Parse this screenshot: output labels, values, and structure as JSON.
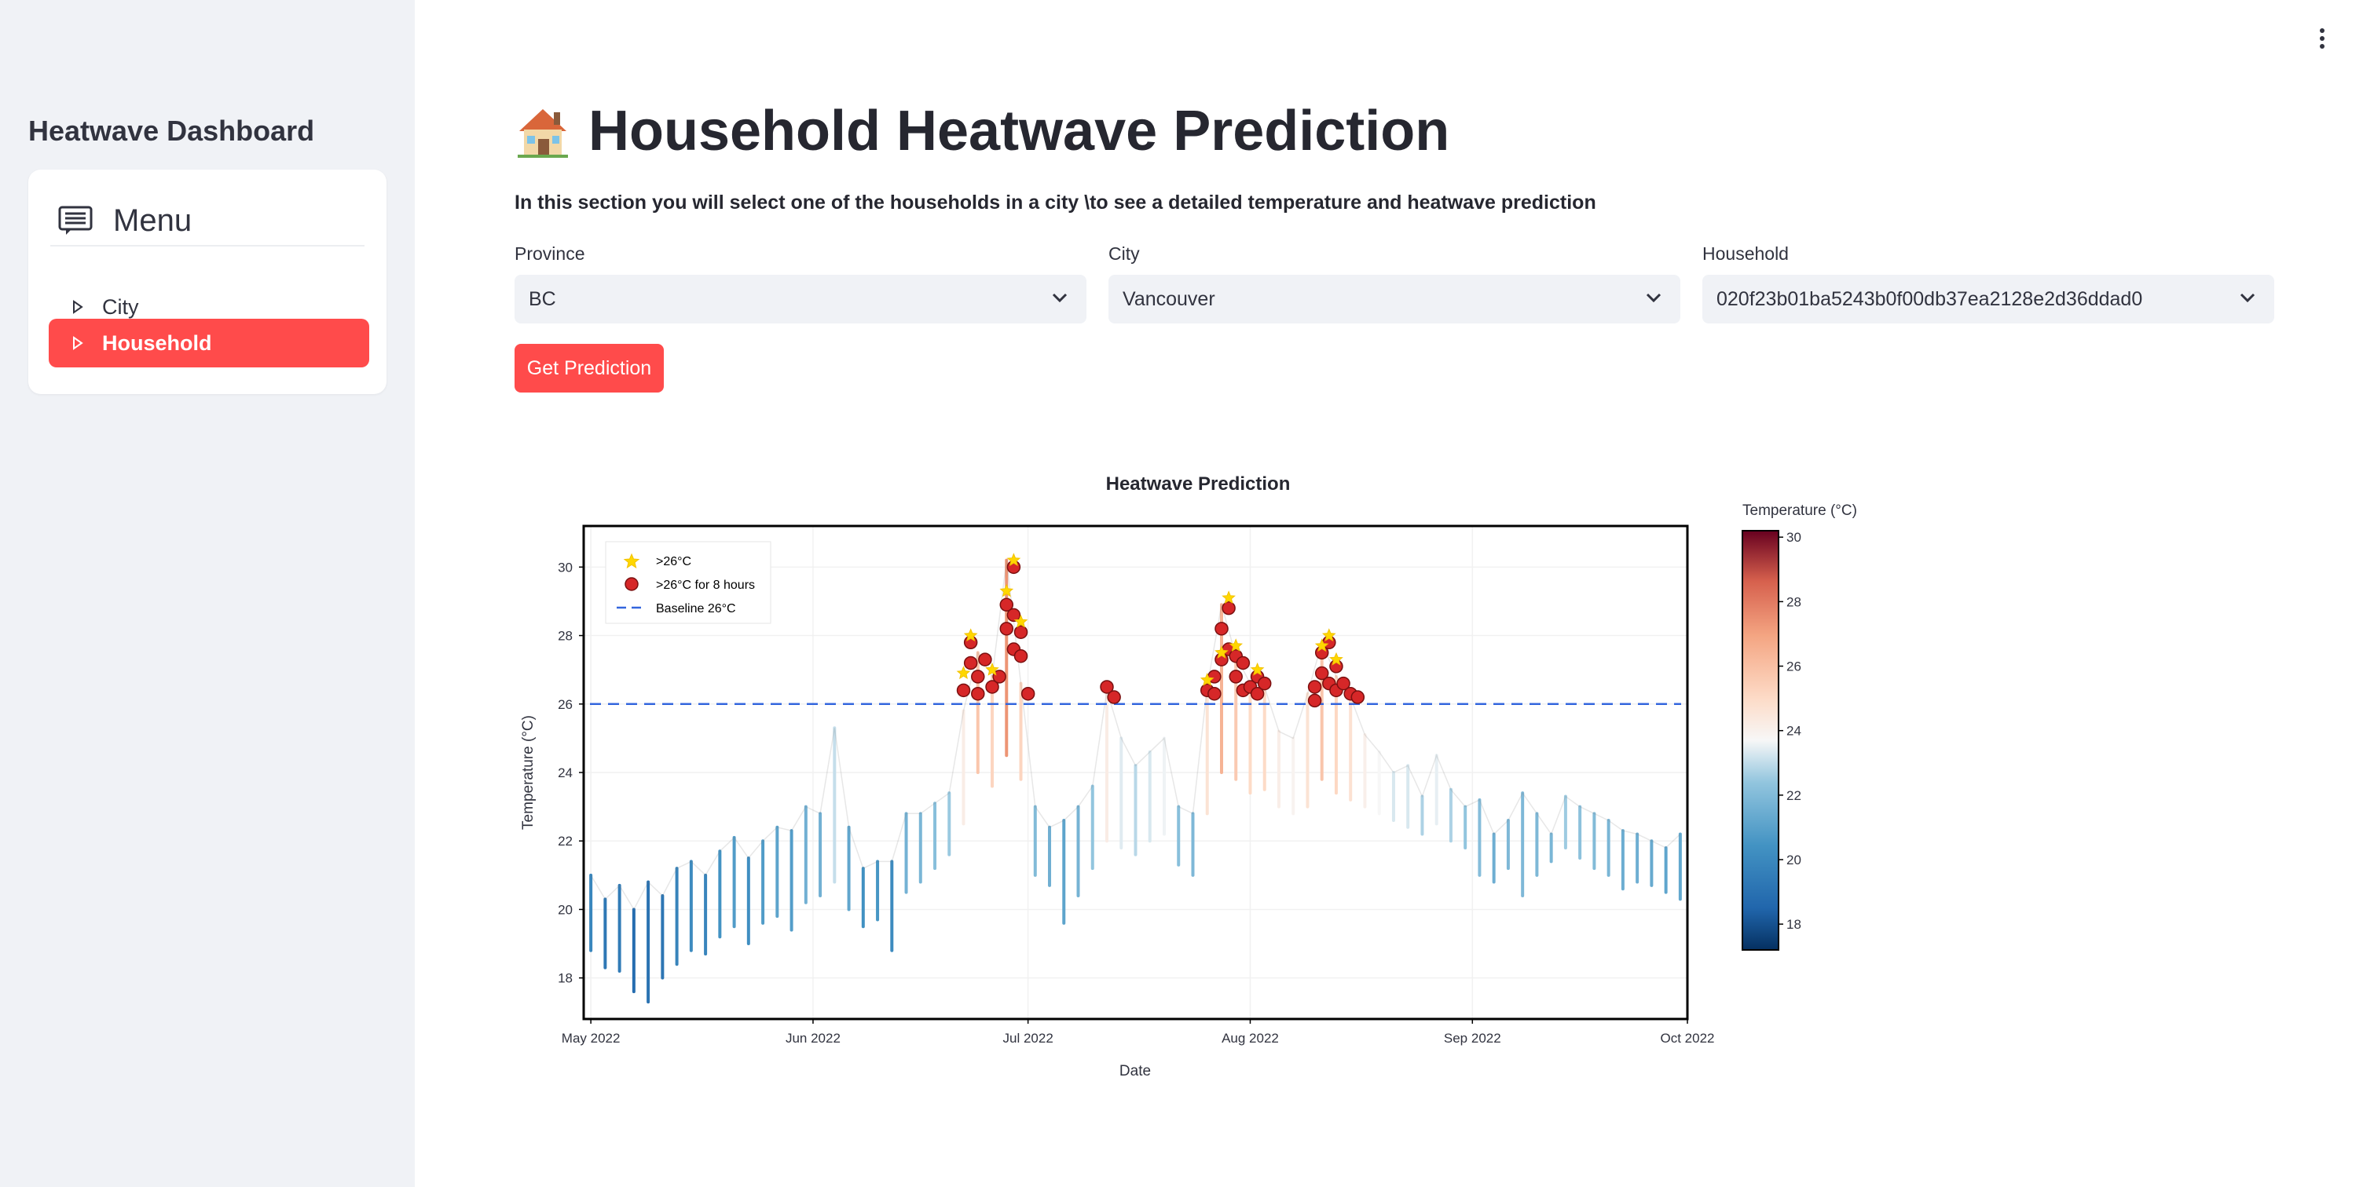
{
  "sidebar": {
    "title": "Heatwave Dashboard",
    "menu_title": "Menu",
    "items": [
      {
        "label": "City",
        "active": false
      },
      {
        "label": "Household",
        "active": true
      }
    ]
  },
  "header": {
    "title": "Household Heatwave Prediction",
    "description": "In this section you will select one of the households in a city \\to see a detailed temperature and heatwave prediction"
  },
  "form": {
    "province": {
      "label": "Province",
      "value": "BC"
    },
    "city": {
      "label": "City",
      "value": "Vancouver"
    },
    "household": {
      "label": "Household",
      "value": "020f23b01ba5243b0f00db37ea2128e2d36ddad0"
    },
    "submit_label": "Get Prediction"
  },
  "colors": {
    "accent": "#ff4b4b",
    "sidebar_bg": "#f0f2f6",
    "baseline": "#3366dd",
    "marker_fill": "#d62728",
    "star_fill": "#ffd700"
  },
  "chart_data": {
    "type": "line",
    "title": "Heatwave Prediction",
    "xlabel": "Date",
    "ylabel": "Temperature (°C)",
    "x_range": [
      "2022-04-30",
      "2022-10-01"
    ],
    "ylim": [
      16.8,
      31.2
    ],
    "x_ticks": [
      {
        "label": "May 2022",
        "date": "2022-05-01"
      },
      {
        "label": "Jun 2022",
        "date": "2022-06-01"
      },
      {
        "label": "Jul 2022",
        "date": "2022-07-01"
      },
      {
        "label": "Aug 2022",
        "date": "2022-08-01"
      },
      {
        "label": "Sep 2022",
        "date": "2022-09-01"
      },
      {
        "label": "Oct 2022",
        "date": "2022-10-01"
      }
    ],
    "y_ticks": [
      18,
      20,
      22,
      24,
      26,
      28,
      30
    ],
    "baseline": 26,
    "grid": true,
    "legend_position": "top-left",
    "legend": [
      {
        "label": ">26°C",
        "marker": "star"
      },
      {
        "label": ">26°C for 8 hours",
        "marker": "circle"
      },
      {
        "label": "Baseline 26°C",
        "marker": "dashed-line"
      }
    ],
    "colorbar": {
      "title": "Temperature (°C)",
      "range": [
        17.2,
        30.2
      ],
      "ticks": [
        18,
        20,
        22,
        24,
        26,
        28,
        30
      ],
      "colormap": "RdBu_r"
    },
    "daily_max": [
      {
        "x": "2022-05-01",
        "y": 21.0
      },
      {
        "x": "2022-05-03",
        "y": 20.3
      },
      {
        "x": "2022-05-05",
        "y": 20.7
      },
      {
        "x": "2022-05-07",
        "y": 20.0
      },
      {
        "x": "2022-05-09",
        "y": 20.8
      },
      {
        "x": "2022-05-11",
        "y": 20.4
      },
      {
        "x": "2022-05-13",
        "y": 21.2
      },
      {
        "x": "2022-05-15",
        "y": 21.4
      },
      {
        "x": "2022-05-17",
        "y": 21.0
      },
      {
        "x": "2022-05-19",
        "y": 21.7
      },
      {
        "x": "2022-05-21",
        "y": 22.1
      },
      {
        "x": "2022-05-23",
        "y": 21.5
      },
      {
        "x": "2022-05-25",
        "y": 22.0
      },
      {
        "x": "2022-05-27",
        "y": 22.4
      },
      {
        "x": "2022-05-29",
        "y": 22.3
      },
      {
        "x": "2022-05-31",
        "y": 23.0
      },
      {
        "x": "2022-06-02",
        "y": 22.8
      },
      {
        "x": "2022-06-04",
        "y": 25.3
      },
      {
        "x": "2022-06-06",
        "y": 22.4
      },
      {
        "x": "2022-06-08",
        "y": 21.2
      },
      {
        "x": "2022-06-10",
        "y": 21.4
      },
      {
        "x": "2022-06-12",
        "y": 21.4
      },
      {
        "x": "2022-06-14",
        "y": 22.8
      },
      {
        "x": "2022-06-16",
        "y": 22.8
      },
      {
        "x": "2022-06-18",
        "y": 23.1
      },
      {
        "x": "2022-06-20",
        "y": 23.4
      },
      {
        "x": "2022-06-22",
        "y": 25.8
      },
      {
        "x": "2022-06-24",
        "y": 27.5
      },
      {
        "x": "2022-06-26",
        "y": 26.8
      },
      {
        "x": "2022-06-28",
        "y": 30.2
      },
      {
        "x": "2022-06-30",
        "y": 26.6
      },
      {
        "x": "2022-07-02",
        "y": 23.0
      },
      {
        "x": "2022-07-04",
        "y": 22.4
      },
      {
        "x": "2022-07-06",
        "y": 22.6
      },
      {
        "x": "2022-07-08",
        "y": 23.0
      },
      {
        "x": "2022-07-10",
        "y": 23.6
      },
      {
        "x": "2022-07-12",
        "y": 26.4
      },
      {
        "x": "2022-07-14",
        "y": 25.0
      },
      {
        "x": "2022-07-16",
        "y": 24.2
      },
      {
        "x": "2022-07-18",
        "y": 24.6
      },
      {
        "x": "2022-07-20",
        "y": 25.0
      },
      {
        "x": "2022-07-22",
        "y": 23.0
      },
      {
        "x": "2022-07-24",
        "y": 22.8
      },
      {
        "x": "2022-07-26",
        "y": 26.5
      },
      {
        "x": "2022-07-28",
        "y": 28.9
      },
      {
        "x": "2022-07-30",
        "y": 27.4
      },
      {
        "x": "2022-08-01",
        "y": 26.6
      },
      {
        "x": "2022-08-03",
        "y": 26.5
      },
      {
        "x": "2022-08-05",
        "y": 25.2
      },
      {
        "x": "2022-08-07",
        "y": 25.0
      },
      {
        "x": "2022-08-09",
        "y": 26.3
      },
      {
        "x": "2022-08-11",
        "y": 27.8
      },
      {
        "x": "2022-08-13",
        "y": 26.8
      },
      {
        "x": "2022-08-15",
        "y": 26.2
      },
      {
        "x": "2022-08-17",
        "y": 25.1
      },
      {
        "x": "2022-08-19",
        "y": 24.6
      },
      {
        "x": "2022-08-21",
        "y": 24.0
      },
      {
        "x": "2022-08-23",
        "y": 24.2
      },
      {
        "x": "2022-08-25",
        "y": 23.3
      },
      {
        "x": "2022-08-27",
        "y": 24.5
      },
      {
        "x": "2022-08-29",
        "y": 23.5
      },
      {
        "x": "2022-08-31",
        "y": 23.0
      },
      {
        "x": "2022-09-02",
        "y": 23.2
      },
      {
        "x": "2022-09-04",
        "y": 22.2
      },
      {
        "x": "2022-09-06",
        "y": 22.6
      },
      {
        "x": "2022-09-08",
        "y": 23.4
      },
      {
        "x": "2022-09-10",
        "y": 22.8
      },
      {
        "x": "2022-09-12",
        "y": 22.2
      },
      {
        "x": "2022-09-14",
        "y": 23.3
      },
      {
        "x": "2022-09-16",
        "y": 23.0
      },
      {
        "x": "2022-09-18",
        "y": 22.8
      },
      {
        "x": "2022-09-20",
        "y": 22.6
      },
      {
        "x": "2022-09-22",
        "y": 22.3
      },
      {
        "x": "2022-09-24",
        "y": 22.2
      },
      {
        "x": "2022-09-26",
        "y": 22.0
      },
      {
        "x": "2022-09-28",
        "y": 21.8
      },
      {
        "x": "2022-09-30",
        "y": 22.2
      }
    ],
    "daily_min": [
      {
        "x": "2022-05-01",
        "y": 18.8
      },
      {
        "x": "2022-05-03",
        "y": 18.3
      },
      {
        "x": "2022-05-05",
        "y": 18.2
      },
      {
        "x": "2022-05-07",
        "y": 17.6
      },
      {
        "x": "2022-05-09",
        "y": 17.3
      },
      {
        "x": "2022-05-11",
        "y": 18.0
      },
      {
        "x": "2022-05-13",
        "y": 18.4
      },
      {
        "x": "2022-05-15",
        "y": 18.8
      },
      {
        "x": "2022-05-17",
        "y": 18.7
      },
      {
        "x": "2022-05-19",
        "y": 19.2
      },
      {
        "x": "2022-05-21",
        "y": 19.5
      },
      {
        "x": "2022-05-23",
        "y": 19.0
      },
      {
        "x": "2022-05-25",
        "y": 19.6
      },
      {
        "x": "2022-05-27",
        "y": 19.8
      },
      {
        "x": "2022-05-29",
        "y": 19.4
      },
      {
        "x": "2022-05-31",
        "y": 20.2
      },
      {
        "x": "2022-06-02",
        "y": 20.4
      },
      {
        "x": "2022-06-04",
        "y": 20.8
      },
      {
        "x": "2022-06-06",
        "y": 20.0
      },
      {
        "x": "2022-06-08",
        "y": 19.5
      },
      {
        "x": "2022-06-10",
        "y": 19.7
      },
      {
        "x": "2022-06-12",
        "y": 18.8
      },
      {
        "x": "2022-06-14",
        "y": 20.5
      },
      {
        "x": "2022-06-16",
        "y": 20.8
      },
      {
        "x": "2022-06-18",
        "y": 21.2
      },
      {
        "x": "2022-06-20",
        "y": 21.6
      },
      {
        "x": "2022-06-22",
        "y": 22.5
      },
      {
        "x": "2022-06-24",
        "y": 24.0
      },
      {
        "x": "2022-06-26",
        "y": 23.6
      },
      {
        "x": "2022-06-28",
        "y": 24.5
      },
      {
        "x": "2022-06-30",
        "y": 23.8
      },
      {
        "x": "2022-07-02",
        "y": 21.0
      },
      {
        "x": "2022-07-04",
        "y": 20.7
      },
      {
        "x": "2022-07-06",
        "y": 19.6
      },
      {
        "x": "2022-07-08",
        "y": 20.4
      },
      {
        "x": "2022-07-10",
        "y": 21.2
      },
      {
        "x": "2022-07-12",
        "y": 22.0
      },
      {
        "x": "2022-07-14",
        "y": 21.8
      },
      {
        "x": "2022-07-16",
        "y": 21.6
      },
      {
        "x": "2022-07-18",
        "y": 22.0
      },
      {
        "x": "2022-07-20",
        "y": 22.2
      },
      {
        "x": "2022-07-22",
        "y": 21.3
      },
      {
        "x": "2022-07-24",
        "y": 21.0
      },
      {
        "x": "2022-07-26",
        "y": 22.8
      },
      {
        "x": "2022-07-28",
        "y": 24.0
      },
      {
        "x": "2022-07-30",
        "y": 23.8
      },
      {
        "x": "2022-08-01",
        "y": 23.4
      },
      {
        "x": "2022-08-03",
        "y": 23.5
      },
      {
        "x": "2022-08-05",
        "y": 23.0
      },
      {
        "x": "2022-08-07",
        "y": 22.8
      },
      {
        "x": "2022-08-09",
        "y": 23.0
      },
      {
        "x": "2022-08-11",
        "y": 23.8
      },
      {
        "x": "2022-08-13",
        "y": 23.4
      },
      {
        "x": "2022-08-15",
        "y": 23.2
      },
      {
        "x": "2022-08-17",
        "y": 23.0
      },
      {
        "x": "2022-08-19",
        "y": 22.8
      },
      {
        "x": "2022-08-21",
        "y": 22.6
      },
      {
        "x": "2022-08-23",
        "y": 22.4
      },
      {
        "x": "2022-08-25",
        "y": 22.2
      },
      {
        "x": "2022-08-27",
        "y": 22.5
      },
      {
        "x": "2022-08-29",
        "y": 22.0
      },
      {
        "x": "2022-08-31",
        "y": 21.8
      },
      {
        "x": "2022-09-02",
        "y": 21.0
      },
      {
        "x": "2022-09-04",
        "y": 20.8
      },
      {
        "x": "2022-09-06",
        "y": 21.2
      },
      {
        "x": "2022-09-08",
        "y": 20.4
      },
      {
        "x": "2022-09-10",
        "y": 21.0
      },
      {
        "x": "2022-09-12",
        "y": 21.4
      },
      {
        "x": "2022-09-14",
        "y": 21.8
      },
      {
        "x": "2022-09-16",
        "y": 21.5
      },
      {
        "x": "2022-09-18",
        "y": 21.2
      },
      {
        "x": "2022-09-20",
        "y": 21.0
      },
      {
        "x": "2022-09-22",
        "y": 20.6
      },
      {
        "x": "2022-09-24",
        "y": 20.8
      },
      {
        "x": "2022-09-26",
        "y": 20.7
      },
      {
        "x": "2022-09-28",
        "y": 20.5
      },
      {
        "x": "2022-09-30",
        "y": 20.3
      }
    ],
    "exceed_8h_points": [
      {
        "x": "2022-06-22",
        "y": 26.4
      },
      {
        "x": "2022-06-23",
        "y": 27.2
      },
      {
        "x": "2022-06-23",
        "y": 27.8
      },
      {
        "x": "2022-06-24",
        "y": 26.8
      },
      {
        "x": "2022-06-24",
        "y": 26.3
      },
      {
        "x": "2022-06-25",
        "y": 27.3
      },
      {
        "x": "2022-06-26",
        "y": 26.5
      },
      {
        "x": "2022-06-27",
        "y": 26.8
      },
      {
        "x": "2022-06-28",
        "y": 28.9
      },
      {
        "x": "2022-06-28",
        "y": 28.2
      },
      {
        "x": "2022-06-29",
        "y": 30.0
      },
      {
        "x": "2022-06-29",
        "y": 28.6
      },
      {
        "x": "2022-06-29",
        "y": 27.6
      },
      {
        "x": "2022-06-30",
        "y": 28.1
      },
      {
        "x": "2022-06-30",
        "y": 27.4
      },
      {
        "x": "2022-07-01",
        "y": 26.3
      },
      {
        "x": "2022-07-12",
        "y": 26.5
      },
      {
        "x": "2022-07-13",
        "y": 26.2
      },
      {
        "x": "2022-07-26",
        "y": 26.4
      },
      {
        "x": "2022-07-27",
        "y": 26.8
      },
      {
        "x": "2022-07-27",
        "y": 26.3
      },
      {
        "x": "2022-07-28",
        "y": 27.3
      },
      {
        "x": "2022-07-28",
        "y": 28.2
      },
      {
        "x": "2022-07-29",
        "y": 28.8
      },
      {
        "x": "2022-07-29",
        "y": 27.6
      },
      {
        "x": "2022-07-30",
        "y": 27.4
      },
      {
        "x": "2022-07-30",
        "y": 26.8
      },
      {
        "x": "2022-07-31",
        "y": 27.2
      },
      {
        "x": "2022-07-31",
        "y": 26.4
      },
      {
        "x": "2022-08-01",
        "y": 26.5
      },
      {
        "x": "2022-08-02",
        "y": 26.8
      },
      {
        "x": "2022-08-02",
        "y": 26.3
      },
      {
        "x": "2022-08-03",
        "y": 26.6
      },
      {
        "x": "2022-08-10",
        "y": 26.5
      },
      {
        "x": "2022-08-10",
        "y": 26.1
      },
      {
        "x": "2022-08-11",
        "y": 26.9
      },
      {
        "x": "2022-08-11",
        "y": 27.5
      },
      {
        "x": "2022-08-12",
        "y": 27.8
      },
      {
        "x": "2022-08-12",
        "y": 26.6
      },
      {
        "x": "2022-08-13",
        "y": 27.1
      },
      {
        "x": "2022-08-13",
        "y": 26.4
      },
      {
        "x": "2022-08-14",
        "y": 26.6
      },
      {
        "x": "2022-08-15",
        "y": 26.3
      },
      {
        "x": "2022-08-16",
        "y": 26.2
      }
    ],
    "exceed_points": [
      {
        "x": "2022-06-22",
        "y": 26.9
      },
      {
        "x": "2022-06-23",
        "y": 28.0
      },
      {
        "x": "2022-06-26",
        "y": 27.0
      },
      {
        "x": "2022-06-28",
        "y": 29.3
      },
      {
        "x": "2022-06-29",
        "y": 30.2
      },
      {
        "x": "2022-06-30",
        "y": 28.4
      },
      {
        "x": "2022-07-26",
        "y": 26.7
      },
      {
        "x": "2022-07-28",
        "y": 27.5
      },
      {
        "x": "2022-07-29",
        "y": 29.1
      },
      {
        "x": "2022-07-30",
        "y": 27.7
      },
      {
        "x": "2022-08-02",
        "y": 27.0
      },
      {
        "x": "2022-08-11",
        "y": 27.7
      },
      {
        "x": "2022-08-12",
        "y": 28.0
      },
      {
        "x": "2022-08-13",
        "y": 27.3
      }
    ]
  }
}
